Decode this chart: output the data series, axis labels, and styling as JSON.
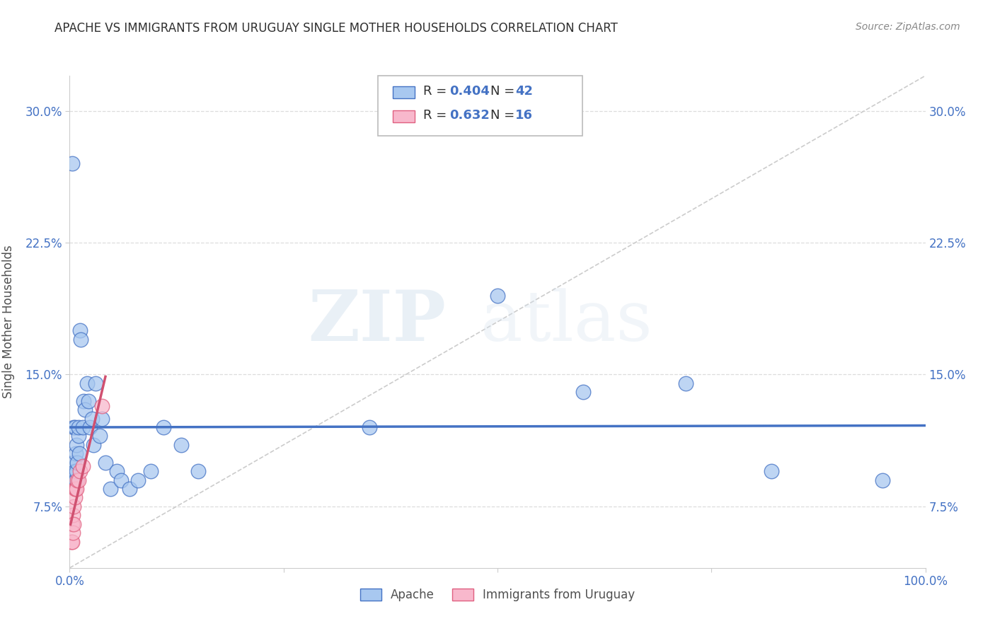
{
  "title": "APACHE VS IMMIGRANTS FROM URUGUAY SINGLE MOTHER HOUSEHOLDS CORRELATION CHART",
  "source": "Source: ZipAtlas.com",
  "ylabel": "Single Mother Households",
  "xlim": [
    0.0,
    1.0
  ],
  "ylim": [
    0.04,
    0.32
  ],
  "ytick_vals": [
    0.075,
    0.15,
    0.225,
    0.3
  ],
  "ytick_labels": [
    "7.5%",
    "15.0%",
    "22.5%",
    "30.0%"
  ],
  "xtick_vals": [
    0.0,
    1.0
  ],
  "xtick_labels": [
    "0.0%",
    "100.0%"
  ],
  "apache_color": "#a8c8f0",
  "apache_edge_color": "#4472c4",
  "uruguay_color": "#f8b8cc",
  "uruguay_edge_color": "#e06080",
  "apache_line_color": "#4472c4",
  "uruguay_line_color": "#d05070",
  "R_apache": 0.404,
  "N_apache": 42,
  "R_uruguay": 0.632,
  "N_uruguay": 16,
  "legend_labels": [
    "Apache",
    "Immigrants from Uruguay"
  ],
  "watermark_zip": "ZIP",
  "watermark_atlas": "atlas",
  "background_color": "#ffffff",
  "grid_color": "#dddddd",
  "title_color": "#303030",
  "axis_label_color": "#505050",
  "tick_color": "#4472c4",
  "source_color": "#888888",
  "apache_x": [
    0.003,
    0.005,
    0.005,
    0.006,
    0.006,
    0.007,
    0.007,
    0.008,
    0.008,
    0.009,
    0.01,
    0.01,
    0.011,
    0.012,
    0.013,
    0.015,
    0.016,
    0.018,
    0.02,
    0.022,
    0.024,
    0.026,
    0.028,
    0.03,
    0.035,
    0.038,
    0.042,
    0.048,
    0.055,
    0.06,
    0.07,
    0.08,
    0.095,
    0.11,
    0.13,
    0.15,
    0.35,
    0.5,
    0.6,
    0.72,
    0.82,
    0.95
  ],
  "apache_y": [
    0.27,
    0.12,
    0.1,
    0.095,
    0.12,
    0.09,
    0.105,
    0.095,
    0.11,
    0.1,
    0.115,
    0.12,
    0.105,
    0.175,
    0.17,
    0.12,
    0.135,
    0.13,
    0.145,
    0.135,
    0.12,
    0.125,
    0.11,
    0.145,
    0.115,
    0.125,
    0.1,
    0.085,
    0.095,
    0.09,
    0.085,
    0.09,
    0.095,
    0.12,
    0.11,
    0.095,
    0.12,
    0.195,
    0.14,
    0.145,
    0.095,
    0.09
  ],
  "uruguay_x": [
    0.002,
    0.003,
    0.003,
    0.004,
    0.004,
    0.005,
    0.005,
    0.006,
    0.006,
    0.007,
    0.008,
    0.009,
    0.01,
    0.012,
    0.015,
    0.038
  ],
  "uruguay_y": [
    0.055,
    0.055,
    0.065,
    0.06,
    0.07,
    0.065,
    0.075,
    0.08,
    0.085,
    0.085,
    0.085,
    0.09,
    0.09,
    0.095,
    0.098,
    0.132
  ],
  "diag_line_color": "#cccccc",
  "legend_box_color": "#4472c4",
  "legend_R_color": "#4472c4",
  "legend_N_color": "#4472c4",
  "legend_text_color": "#303030"
}
